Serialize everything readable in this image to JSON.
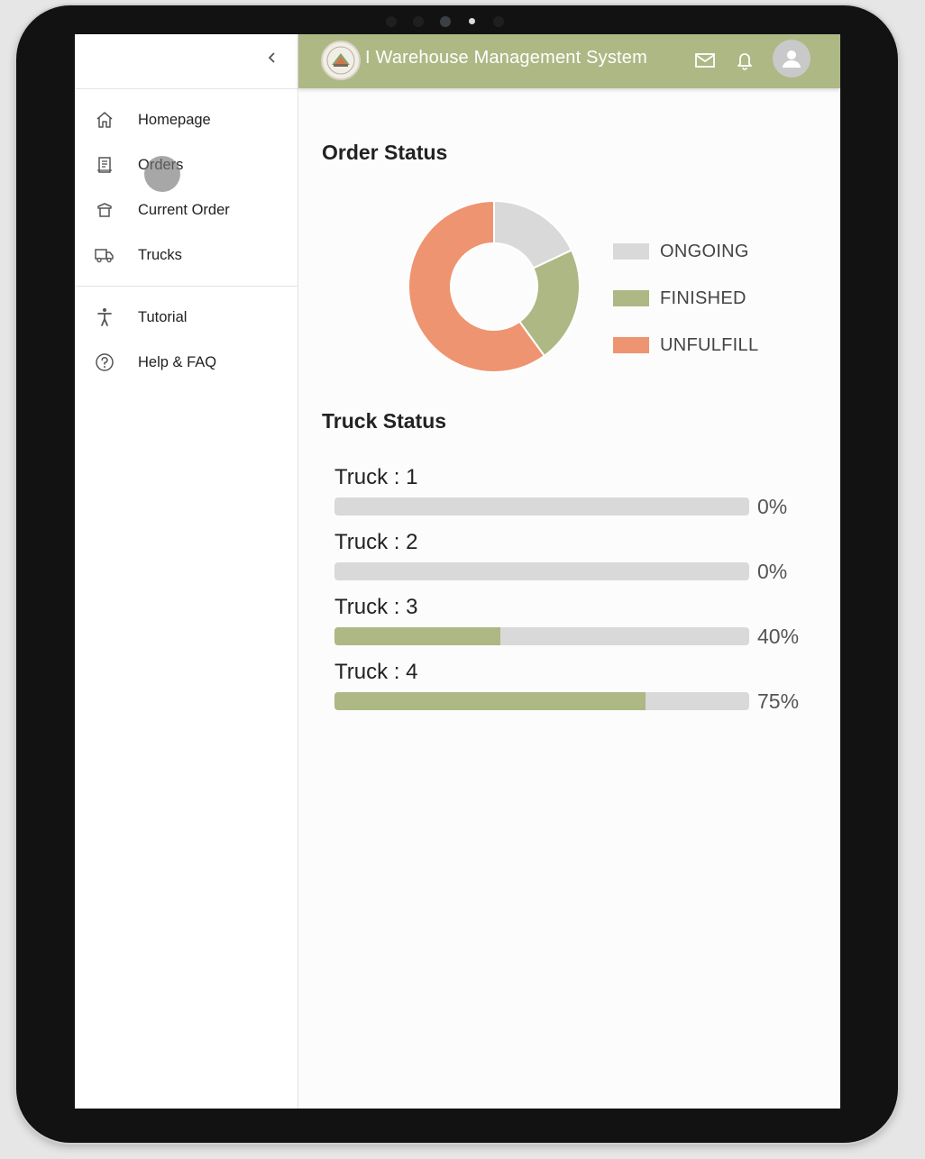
{
  "app": {
    "title": "I Warehouse Management System"
  },
  "sidebar": {
    "collapse_icon": "chevron-left-icon",
    "items": [
      {
        "label": "Homepage",
        "icon": "home-icon"
      },
      {
        "label": "Orders",
        "icon": "receipt-icon"
      },
      {
        "label": "Current Order",
        "icon": "box-icon"
      },
      {
        "label": "Trucks",
        "icon": "truck-icon"
      }
    ],
    "secondary_items": [
      {
        "label": "Tutorial",
        "icon": "accessibility-icon"
      },
      {
        "label": "Help & FAQ",
        "icon": "help-circle-icon"
      }
    ]
  },
  "header": {
    "icons": [
      "mail-icon",
      "bell-icon",
      "user-avatar-icon"
    ]
  },
  "order_status": {
    "title": "Order Status"
  },
  "chart_data": {
    "type": "pie",
    "subtype": "donut",
    "categories": [
      "ONGOING",
      "FINISHED",
      "UNFULFILL"
    ],
    "values": [
      18,
      22,
      60
    ],
    "colors": [
      "#d9d9d9",
      "#adb884",
      "#ef9470"
    ],
    "legend": "right"
  },
  "truck_status": {
    "title": "Truck Status",
    "trucks": [
      {
        "label": "Truck : 1",
        "pct": "0%",
        "value": 0
      },
      {
        "label": "Truck : 2",
        "pct": "0%",
        "value": 0
      },
      {
        "label": "Truck : 3",
        "pct": "40%",
        "value": 40
      },
      {
        "label": "Truck : 4",
        "pct": "75%",
        "value": 75
      }
    ]
  }
}
